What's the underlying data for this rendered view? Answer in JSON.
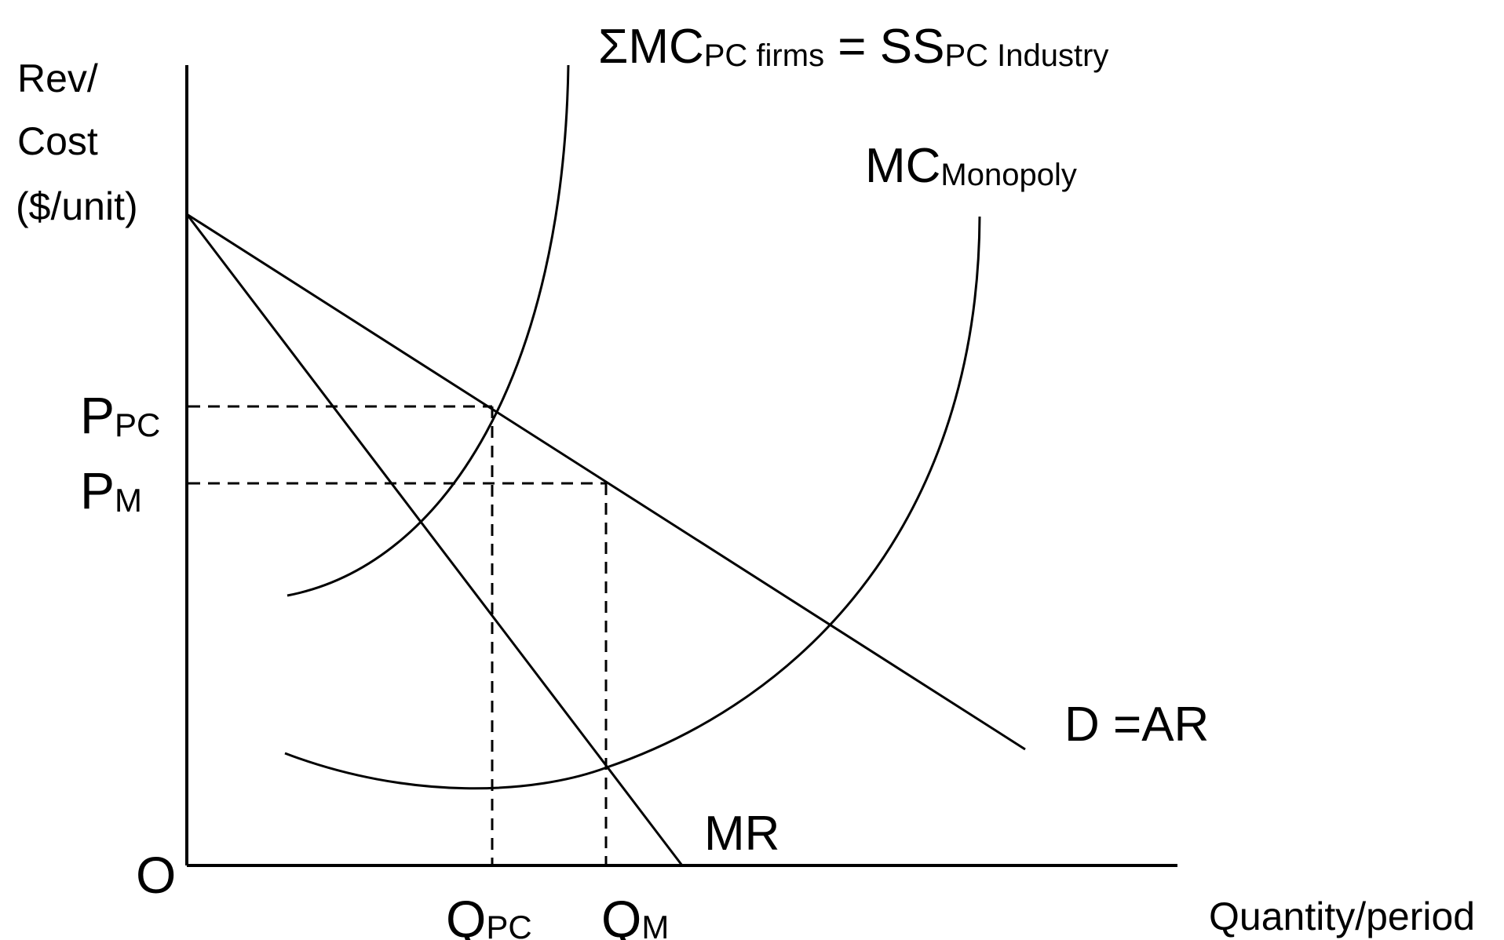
{
  "y_axis": {
    "label_line1": "Rev/",
    "label_line2": "Cost",
    "label_line3": "($/unit)"
  },
  "x_axis": {
    "label": "Quantity/period"
  },
  "origin_label": "O",
  "price_labels": {
    "ppc": {
      "main": "P",
      "sub": "PC"
    },
    "pm": {
      "main": "P",
      "sub": "M"
    }
  },
  "quantity_labels": {
    "qpc": {
      "main": "Q",
      "sub": "PC"
    },
    "qm": {
      "main": "Q",
      "sub": "M"
    }
  },
  "curves": {
    "industry_supply": {
      "text1": "ΣMC",
      "sub1": "PC firms",
      "text2": " = SS",
      "sub2": "PC Industry"
    },
    "mc_monopoly": {
      "text": "MC",
      "sub": "Monopoly"
    },
    "demand": {
      "text": "D =AR"
    },
    "mr": {
      "text": "MR"
    }
  }
}
